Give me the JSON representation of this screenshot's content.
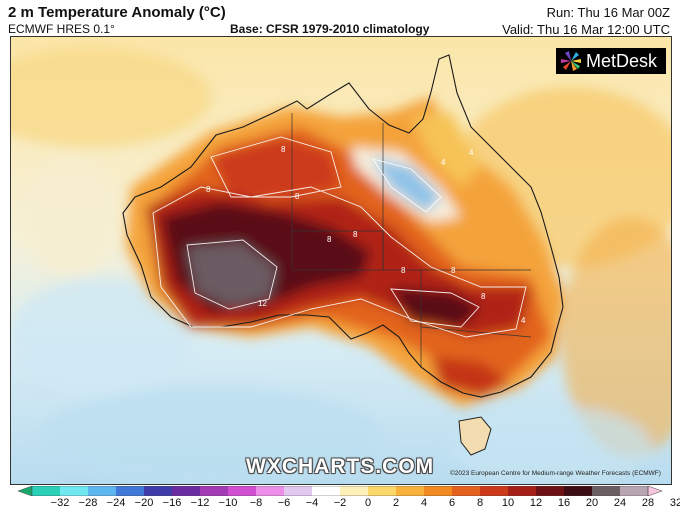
{
  "header": {
    "title": "2 m Temperature Anomaly (°C)",
    "model": "ECMWF HRES 0.1°",
    "base": "Base: CFSR 1979-2010 climatology",
    "run": "Run: Thu 16 Mar 00Z",
    "valid": "Valid: Thu 16 Mar 12:00 UTC"
  },
  "branding": {
    "logo_text": "MetDesk",
    "watermark": "WXCHARTS.COM",
    "copyright": "©2023 European Centre for Medium-range Weather Forecasts (ECMWF)"
  },
  "map": {
    "contour_labels": [
      "8",
      "8",
      "8",
      "8",
      "8",
      "8",
      "8",
      "8",
      "12",
      "4",
      "4",
      "4"
    ]
  },
  "colorbar": {
    "ticks": [
      "−32",
      "−28",
      "−24",
      "−20",
      "−16",
      "−12",
      "−10",
      "−8",
      "−6",
      "−4",
      "−2",
      "0",
      "2",
      "4",
      "6",
      "8",
      "10",
      "12",
      "16",
      "20",
      "24",
      "28",
      "32"
    ],
    "colors": [
      "#1aa86a",
      "#2ad0b8",
      "#6fe8f2",
      "#5eb6f0",
      "#3f78d8",
      "#3e3ca8",
      "#6a2ca0",
      "#a33ab6",
      "#d14fd0",
      "#ed8fe8",
      "#e2c8ef",
      "#ffffff",
      "#fdf0b8",
      "#fcd76a",
      "#f8b13a",
      "#f28a21",
      "#e6601e",
      "#cc3a1a",
      "#a61e18",
      "#6e1114",
      "#3d0c12",
      "#6b5f63",
      "#b8a7b3",
      "#f8c8e0"
    ]
  }
}
